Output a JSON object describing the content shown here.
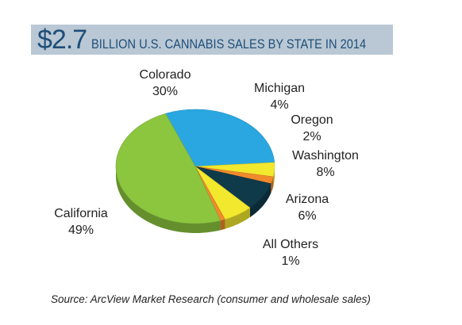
{
  "header": {
    "amount": "$2.7",
    "rest": "BILLION U.S. CANNABIS SALES BY STATE IN 2014"
  },
  "chart_data": {
    "type": "pie",
    "title": "$2.7 BILLION U.S. CANNABIS SALES BY STATE IN 2014",
    "slices": [
      {
        "name": "Colorado",
        "value": 30,
        "label": "30%",
        "color": "#2aa7e0"
      },
      {
        "name": "Michigan",
        "value": 4,
        "label": "4%",
        "color": "#f2e82e"
      },
      {
        "name": "Oregon",
        "value": 2,
        "label": "2%",
        "color": "#f08a2c"
      },
      {
        "name": "Washington",
        "value": 8,
        "label": "8%",
        "color": "#0f3a4a"
      },
      {
        "name": "Arizona",
        "value": 6,
        "label": "6%",
        "color": "#f2e82e"
      },
      {
        "name": "All Others",
        "value": 1,
        "label": "1%",
        "color": "#f08a2c"
      },
      {
        "name": "California",
        "value": 49,
        "label": "49%",
        "color": "#8cc63f"
      }
    ]
  },
  "footer": {
    "source": "Source: ArcView Market Research (consumer and wholesale sales)"
  }
}
